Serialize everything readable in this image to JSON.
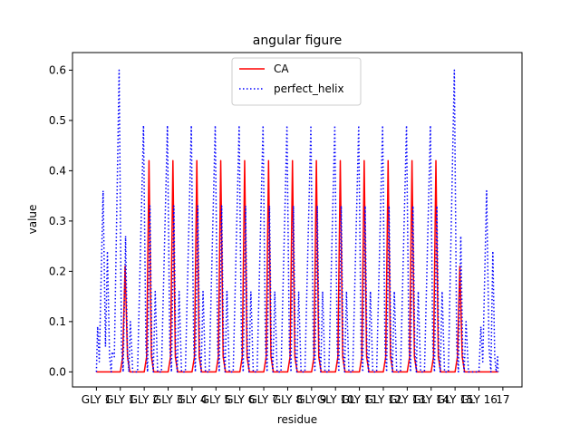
{
  "chart_data": {
    "type": "line",
    "title": "angular figure",
    "xlabel": "residue",
    "ylabel": "value",
    "xlim": [
      -1.0,
      17.8
    ],
    "ylim": [
      -0.03,
      0.635
    ],
    "yticks": [
      0.0,
      0.1,
      0.2,
      0.3,
      0.4,
      0.5,
      0.6
    ],
    "ytick_labels": [
      "0.0",
      "0.1",
      "0.2",
      "0.3",
      "0.4",
      "0.5",
      "0.6"
    ],
    "xticks": [
      0,
      1,
      2,
      3,
      4,
      5,
      6,
      7,
      8,
      9,
      10,
      11,
      12,
      13,
      14,
      15,
      16,
      17
    ],
    "xtick_labels": [
      "GLY 1",
      "GLY 1",
      "GLY 2",
      "GLY 3",
      "GLY 4",
      "GLY 5",
      "GLY 6",
      "GLY 7",
      "GLY 8",
      "GLY 9",
      "GLY 10",
      "GLY 11",
      "GLY 12",
      "GLY 13",
      "GLY 14",
      "GLY 15",
      "GLY 16",
      "17"
    ],
    "legend": {
      "placement": "upper-center",
      "entries": [
        "CA",
        "perfect_helix"
      ]
    },
    "grid": false,
    "series": [
      {
        "name": "CA",
        "color": "#ff0000",
        "style": "solid",
        "points": [
          [
            0.0,
            0.0
          ],
          [
            1.0,
            0.0
          ],
          [
            1.1,
            0.03
          ],
          [
            1.2,
            0.21
          ],
          [
            1.3,
            0.03
          ],
          [
            1.4,
            0.0
          ],
          [
            2.0,
            0.0
          ],
          [
            2.1,
            0.03
          ],
          [
            2.2,
            0.42
          ],
          [
            2.3,
            0.03
          ],
          [
            2.4,
            0.0
          ],
          [
            3.0,
            0.0
          ],
          [
            3.1,
            0.03
          ],
          [
            3.2,
            0.42
          ],
          [
            3.3,
            0.03
          ],
          [
            3.4,
            0.0
          ],
          [
            4.0,
            0.0
          ],
          [
            4.1,
            0.03
          ],
          [
            4.2,
            0.42
          ],
          [
            4.3,
            0.03
          ],
          [
            4.4,
            0.0
          ],
          [
            5.0,
            0.0
          ],
          [
            5.1,
            0.03
          ],
          [
            5.2,
            0.42
          ],
          [
            5.3,
            0.03
          ],
          [
            5.4,
            0.0
          ],
          [
            6.0,
            0.0
          ],
          [
            6.1,
            0.03
          ],
          [
            6.2,
            0.42
          ],
          [
            6.3,
            0.03
          ],
          [
            6.4,
            0.0
          ],
          [
            7.0,
            0.0
          ],
          [
            7.1,
            0.03
          ],
          [
            7.2,
            0.42
          ],
          [
            7.3,
            0.03
          ],
          [
            7.4,
            0.0
          ],
          [
            8.0,
            0.0
          ],
          [
            8.1,
            0.03
          ],
          [
            8.2,
            0.42
          ],
          [
            8.3,
            0.03
          ],
          [
            8.4,
            0.0
          ],
          [
            9.0,
            0.0
          ],
          [
            9.1,
            0.03
          ],
          [
            9.2,
            0.42
          ],
          [
            9.3,
            0.03
          ],
          [
            9.4,
            0.0
          ],
          [
            10.0,
            0.0
          ],
          [
            10.1,
            0.03
          ],
          [
            10.2,
            0.42
          ],
          [
            10.3,
            0.03
          ],
          [
            10.4,
            0.0
          ],
          [
            11.0,
            0.0
          ],
          [
            11.1,
            0.03
          ],
          [
            11.2,
            0.42
          ],
          [
            11.3,
            0.03
          ],
          [
            11.4,
            0.0
          ],
          [
            12.0,
            0.0
          ],
          [
            12.1,
            0.03
          ],
          [
            12.2,
            0.42
          ],
          [
            12.3,
            0.03
          ],
          [
            12.4,
            0.0
          ],
          [
            13.0,
            0.0
          ],
          [
            13.1,
            0.03
          ],
          [
            13.2,
            0.42
          ],
          [
            13.3,
            0.03
          ],
          [
            13.4,
            0.0
          ],
          [
            14.0,
            0.0
          ],
          [
            14.1,
            0.03
          ],
          [
            14.2,
            0.42
          ],
          [
            14.3,
            0.03
          ],
          [
            14.4,
            0.0
          ],
          [
            15.0,
            0.0
          ],
          [
            15.1,
            0.03
          ],
          [
            15.2,
            0.21
          ],
          [
            15.3,
            0.03
          ],
          [
            15.4,
            0.0
          ],
          [
            16.8,
            0.0
          ]
        ]
      },
      {
        "name": "perfect_helix",
        "color": "#0000ff",
        "style": "dotted",
        "points": [
          [
            0.0,
            0.0
          ],
          [
            0.05,
            0.09
          ],
          [
            0.12,
            0.02
          ],
          [
            0.28,
            0.36
          ],
          [
            0.38,
            0.05
          ],
          [
            0.46,
            0.24
          ],
          [
            0.55,
            0.03
          ],
          [
            0.62,
            0.0
          ],
          [
            0.65,
            0.04
          ],
          [
            0.75,
            0.03
          ],
          [
            0.95,
            0.6
          ],
          [
            1.05,
            0.05
          ],
          [
            1.12,
            0.0
          ],
          [
            1.22,
            0.27
          ],
          [
            1.3,
            0.04
          ],
          [
            1.36,
            0.0
          ],
          [
            1.42,
            0.1
          ],
          [
            1.52,
            0.0
          ],
          [
            1.72,
            0.0
          ],
          [
            1.97,
            0.49
          ],
          [
            2.07,
            0.05
          ],
          [
            2.14,
            0.0
          ],
          [
            2.24,
            0.33
          ],
          [
            2.32,
            0.04
          ],
          [
            2.38,
            0.0
          ],
          [
            2.46,
            0.16
          ],
          [
            2.56,
            0.0
          ],
          [
            2.72,
            0.0
          ],
          [
            2.97,
            0.49
          ],
          [
            3.07,
            0.05
          ],
          [
            3.14,
            0.0
          ],
          [
            3.24,
            0.33
          ],
          [
            3.32,
            0.04
          ],
          [
            3.38,
            0.0
          ],
          [
            3.46,
            0.16
          ],
          [
            3.56,
            0.0
          ],
          [
            3.72,
            0.0
          ],
          [
            3.97,
            0.49
          ],
          [
            4.07,
            0.05
          ],
          [
            4.14,
            0.0
          ],
          [
            4.24,
            0.33
          ],
          [
            4.32,
            0.04
          ],
          [
            4.38,
            0.0
          ],
          [
            4.46,
            0.16
          ],
          [
            4.56,
            0.0
          ],
          [
            4.72,
            0.0
          ],
          [
            4.97,
            0.49
          ],
          [
            5.07,
            0.05
          ],
          [
            5.14,
            0.0
          ],
          [
            5.24,
            0.33
          ],
          [
            5.32,
            0.04
          ],
          [
            5.38,
            0.0
          ],
          [
            5.46,
            0.16
          ],
          [
            5.56,
            0.0
          ],
          [
            5.72,
            0.0
          ],
          [
            5.97,
            0.49
          ],
          [
            6.07,
            0.05
          ],
          [
            6.14,
            0.0
          ],
          [
            6.24,
            0.33
          ],
          [
            6.32,
            0.04
          ],
          [
            6.38,
            0.0
          ],
          [
            6.46,
            0.16
          ],
          [
            6.56,
            0.0
          ],
          [
            6.72,
            0.0
          ],
          [
            6.97,
            0.49
          ],
          [
            7.07,
            0.05
          ],
          [
            7.14,
            0.0
          ],
          [
            7.24,
            0.33
          ],
          [
            7.32,
            0.04
          ],
          [
            7.38,
            0.0
          ],
          [
            7.46,
            0.16
          ],
          [
            7.56,
            0.0
          ],
          [
            7.72,
            0.0
          ],
          [
            7.97,
            0.49
          ],
          [
            8.07,
            0.05
          ],
          [
            8.14,
            0.0
          ],
          [
            8.24,
            0.33
          ],
          [
            8.32,
            0.04
          ],
          [
            8.38,
            0.0
          ],
          [
            8.46,
            0.16
          ],
          [
            8.56,
            0.0
          ],
          [
            8.72,
            0.0
          ],
          [
            8.97,
            0.49
          ],
          [
            9.07,
            0.05
          ],
          [
            9.14,
            0.0
          ],
          [
            9.24,
            0.33
          ],
          [
            9.32,
            0.04
          ],
          [
            9.38,
            0.0
          ],
          [
            9.46,
            0.16
          ],
          [
            9.56,
            0.0
          ],
          [
            9.72,
            0.0
          ],
          [
            9.97,
            0.49
          ],
          [
            10.07,
            0.05
          ],
          [
            10.14,
            0.0
          ],
          [
            10.24,
            0.33
          ],
          [
            10.32,
            0.04
          ],
          [
            10.38,
            0.0
          ],
          [
            10.46,
            0.16
          ],
          [
            10.56,
            0.0
          ],
          [
            10.72,
            0.0
          ],
          [
            10.97,
            0.49
          ],
          [
            11.07,
            0.05
          ],
          [
            11.14,
            0.0
          ],
          [
            11.24,
            0.33
          ],
          [
            11.32,
            0.04
          ],
          [
            11.38,
            0.0
          ],
          [
            11.46,
            0.16
          ],
          [
            11.56,
            0.0
          ],
          [
            11.72,
            0.0
          ],
          [
            11.97,
            0.49
          ],
          [
            12.07,
            0.05
          ],
          [
            12.14,
            0.0
          ],
          [
            12.24,
            0.33
          ],
          [
            12.32,
            0.04
          ],
          [
            12.38,
            0.0
          ],
          [
            12.46,
            0.16
          ],
          [
            12.56,
            0.0
          ],
          [
            12.72,
            0.0
          ],
          [
            12.97,
            0.49
          ],
          [
            13.07,
            0.05
          ],
          [
            13.14,
            0.0
          ],
          [
            13.24,
            0.33
          ],
          [
            13.32,
            0.04
          ],
          [
            13.38,
            0.0
          ],
          [
            13.46,
            0.16
          ],
          [
            13.56,
            0.0
          ],
          [
            13.72,
            0.0
          ],
          [
            13.97,
            0.49
          ],
          [
            14.07,
            0.05
          ],
          [
            14.14,
            0.0
          ],
          [
            14.24,
            0.33
          ],
          [
            14.32,
            0.04
          ],
          [
            14.38,
            0.0
          ],
          [
            14.46,
            0.16
          ],
          [
            14.56,
            0.0
          ],
          [
            14.72,
            0.0
          ],
          [
            14.97,
            0.6
          ],
          [
            15.07,
            0.05
          ],
          [
            15.14,
            0.0
          ],
          [
            15.24,
            0.27
          ],
          [
            15.32,
            0.04
          ],
          [
            15.38,
            0.0
          ],
          [
            15.46,
            0.1
          ],
          [
            15.56,
            0.0
          ],
          [
            15.8,
            0.0
          ],
          [
            16.0,
            0.0
          ],
          [
            16.08,
            0.09
          ],
          [
            16.16,
            0.02
          ],
          [
            16.32,
            0.36
          ],
          [
            16.42,
            0.05
          ],
          [
            16.5,
            0.0
          ],
          [
            16.58,
            0.24
          ],
          [
            16.66,
            0.03
          ],
          [
            16.72,
            0.0
          ],
          [
            16.78,
            0.03
          ],
          [
            16.8,
            0.0
          ]
        ]
      }
    ]
  }
}
